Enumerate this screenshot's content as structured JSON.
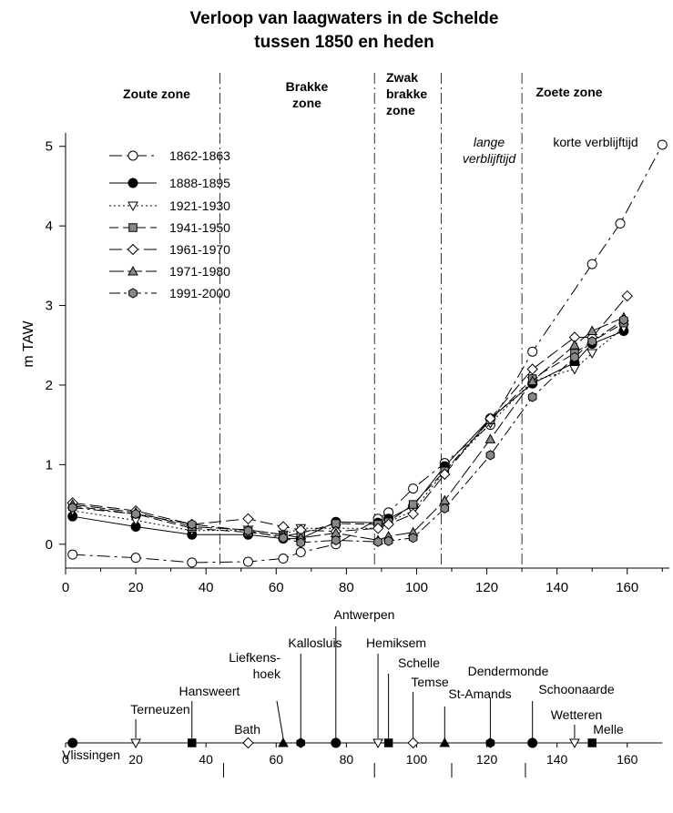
{
  "chart_data": {
    "type": "line",
    "title_lines": [
      "Verloop van  laagwaters in de Schelde",
      "tussen 1850 en heden"
    ],
    "ylabel": "m TAW",
    "xlim": [
      0,
      172
    ],
    "ylim": [
      -0.3,
      5.1
    ],
    "xticks": [
      0,
      20,
      40,
      60,
      80,
      100,
      120,
      140,
      160
    ],
    "yticks": [
      0,
      1,
      2,
      3,
      4,
      5
    ],
    "zones": [
      {
        "id": "zoute",
        "lines": [
          "Zoute zone"
        ],
        "style": "bold"
      },
      {
        "id": "brakke",
        "lines": [
          "Brakke",
          "zone"
        ],
        "style": "bold"
      },
      {
        "id": "zwak",
        "lines": [
          "Zwak",
          "brakke",
          "zone"
        ],
        "style": "bold"
      },
      {
        "id": "zoete",
        "lines": [
          "Zoete zone"
        ],
        "style": "bold"
      },
      {
        "id": "lange",
        "lines": [
          "lange",
          "verblijftijd"
        ],
        "style": "italic"
      },
      {
        "id": "korte",
        "lines": [
          "korte verblijftijd"
        ],
        "style": "normal"
      }
    ],
    "zone_boundaries": [
      44,
      88,
      107,
      130
    ],
    "series": [
      {
        "name": "1862-1863",
        "marker": "circle-open",
        "color": "#000000",
        "dash": "14 5 3 5",
        "x": [
          2,
          20,
          36,
          52,
          62,
          67,
          77,
          89,
          92,
          99,
          108,
          121,
          133,
          150,
          158,
          170
        ],
        "y": [
          -0.13,
          -0.17,
          -0.23,
          -0.22,
          -0.18,
          -0.1,
          0.0,
          0.32,
          0.4,
          0.7,
          1.02,
          1.5,
          2.42,
          3.52,
          4.03,
          5.02
        ]
      },
      {
        "name": "1888-1895",
        "marker": "circle-filled",
        "color": "#000000",
        "dash": "",
        "x": [
          2,
          20,
          36,
          52,
          62,
          67,
          77,
          89,
          92,
          99,
          108,
          121,
          133,
          145,
          150,
          159
        ],
        "y": [
          0.35,
          0.22,
          0.12,
          0.12,
          0.07,
          0.07,
          0.28,
          0.27,
          0.32,
          0.48,
          0.98,
          1.58,
          2.02,
          2.28,
          2.52,
          2.68
        ]
      },
      {
        "name": "1921-1930",
        "marker": "triangle-down-open",
        "color": "#000000",
        "dash": "2 3",
        "x": [
          2,
          20,
          36,
          52,
          62,
          67,
          77,
          89,
          92,
          99,
          108,
          121,
          133,
          145,
          150,
          159
        ],
        "y": [
          0.42,
          0.3,
          0.17,
          0.18,
          0.12,
          0.2,
          0.2,
          0.2,
          0.28,
          0.42,
          0.92,
          1.52,
          2.05,
          2.2,
          2.4,
          2.72
        ]
      },
      {
        "name": "1941-1950",
        "marker": "square-filled",
        "color": "#888888",
        "dash": "10 5",
        "x": [
          2,
          20,
          36,
          52,
          62,
          67,
          77,
          89,
          92,
          99,
          108,
          121,
          133,
          145,
          150,
          159
        ],
        "y": [
          0.48,
          0.38,
          0.2,
          0.15,
          0.1,
          0.14,
          0.26,
          0.25,
          0.28,
          0.5,
          0.92,
          1.56,
          2.08,
          2.4,
          2.55,
          2.78
        ]
      },
      {
        "name": "1961-1970",
        "marker": "diamond-open",
        "color": "#000000",
        "dash": "14 5",
        "x": [
          2,
          20,
          36,
          52,
          62,
          67,
          77,
          89,
          92,
          99,
          108,
          121,
          133,
          145,
          150,
          160
        ],
        "y": [
          0.52,
          0.42,
          0.25,
          0.32,
          0.22,
          0.18,
          0.16,
          0.2,
          0.25,
          0.38,
          0.88,
          1.58,
          2.2,
          2.6,
          2.6,
          3.12
        ]
      },
      {
        "name": "1971-1980",
        "marker": "triangle-up-filled",
        "color": "#888888",
        "dash": "16 4",
        "x": [
          2,
          20,
          36,
          52,
          62,
          67,
          77,
          89,
          92,
          99,
          108,
          121,
          133,
          145,
          150,
          159
        ],
        "y": [
          0.5,
          0.4,
          0.22,
          0.18,
          0.12,
          0.08,
          0.14,
          0.05,
          0.1,
          0.15,
          0.55,
          1.32,
          2.05,
          2.5,
          2.68,
          2.85
        ]
      },
      {
        "name": "1991-2000",
        "marker": "hexagon-filled",
        "color": "#888888",
        "dash": "12 4 3 4",
        "x": [
          2,
          20,
          36,
          52,
          62,
          67,
          77,
          89,
          92,
          99,
          108,
          121,
          133,
          145,
          150,
          159
        ],
        "y": [
          0.46,
          0.38,
          0.25,
          0.17,
          0.08,
          0.02,
          0.05,
          0.03,
          0.04,
          0.08,
          0.45,
          1.12,
          1.85,
          2.35,
          2.55,
          2.82
        ]
      }
    ],
    "map_axis": {
      "ticks": [
        0,
        20,
        40,
        60,
        80,
        100,
        120,
        140,
        160
      ],
      "minor_ticks_below": [
        45,
        88,
        110,
        131
      ],
      "places": [
        {
          "name": "Vlissingen",
          "x": 2,
          "marker": "circle-filled",
          "label_lines": [
            "Vlissingen"
          ],
          "label_anchor": "end"
        },
        {
          "name": "Terneuzen",
          "x": 20,
          "marker": "triangle-down-open",
          "label_lines": [
            "Terneuzen"
          ],
          "label_anchor": "middle"
        },
        {
          "name": "Hansweert",
          "x": 36,
          "marker": "square-filled",
          "label_lines": [
            "Hansweert"
          ],
          "label_anchor": "middle"
        },
        {
          "name": "Bath",
          "x": 52,
          "marker": "diamond-open",
          "label_lines": [
            "Bath"
          ],
          "label_anchor": "end"
        },
        {
          "name": "Liefkenshoek",
          "x": 62,
          "marker": "triangle-up-filled",
          "label_lines": [
            "Liefkens-",
            "hoek"
          ],
          "label_anchor": "end"
        },
        {
          "name": "Kallosluis",
          "x": 67,
          "marker": "hexagon-filled",
          "label_lines": [
            "Kallosluis"
          ],
          "label_anchor": "middle"
        },
        {
          "name": "Antwerpen",
          "x": 77,
          "marker": "circle-filled",
          "label_lines": [
            "Antwerpen"
          ],
          "label_anchor": "middle"
        },
        {
          "name": "Hemiksem",
          "x": 89,
          "marker": "triangle-down-open",
          "label_lines": [
            "Hemiksem"
          ],
          "label_anchor": "middle"
        },
        {
          "name": "Schelle",
          "x": 92,
          "marker": "square-filled",
          "label_lines": [
            "Schelle"
          ],
          "label_anchor": "middle"
        },
        {
          "name": "Temse",
          "x": 99,
          "marker": "diamond-open",
          "label_lines": [
            "Temse"
          ],
          "label_anchor": "middle"
        },
        {
          "name": "St-Amands",
          "x": 108,
          "marker": "triangle-up-filled",
          "label_lines": [
            "St-Amands"
          ],
          "label_anchor": "middle"
        },
        {
          "name": "Dendermonde",
          "x": 121,
          "marker": "hexagon-filled",
          "label_lines": [
            "Dendermonde"
          ],
          "label_anchor": "middle"
        },
        {
          "name": "Schoonaarde",
          "x": 133,
          "marker": "circle-filled",
          "label_lines": [
            "Schoonaarde"
          ],
          "label_anchor": "middle"
        },
        {
          "name": "Wetteren",
          "x": 145,
          "marker": "triangle-down-open",
          "label_lines": [
            "Wetteren"
          ],
          "label_anchor": "middle"
        },
        {
          "name": "Melle",
          "x": 150,
          "marker": "square-filled",
          "label_lines": [
            "Melle"
          ],
          "label_anchor": "middle"
        }
      ]
    }
  }
}
